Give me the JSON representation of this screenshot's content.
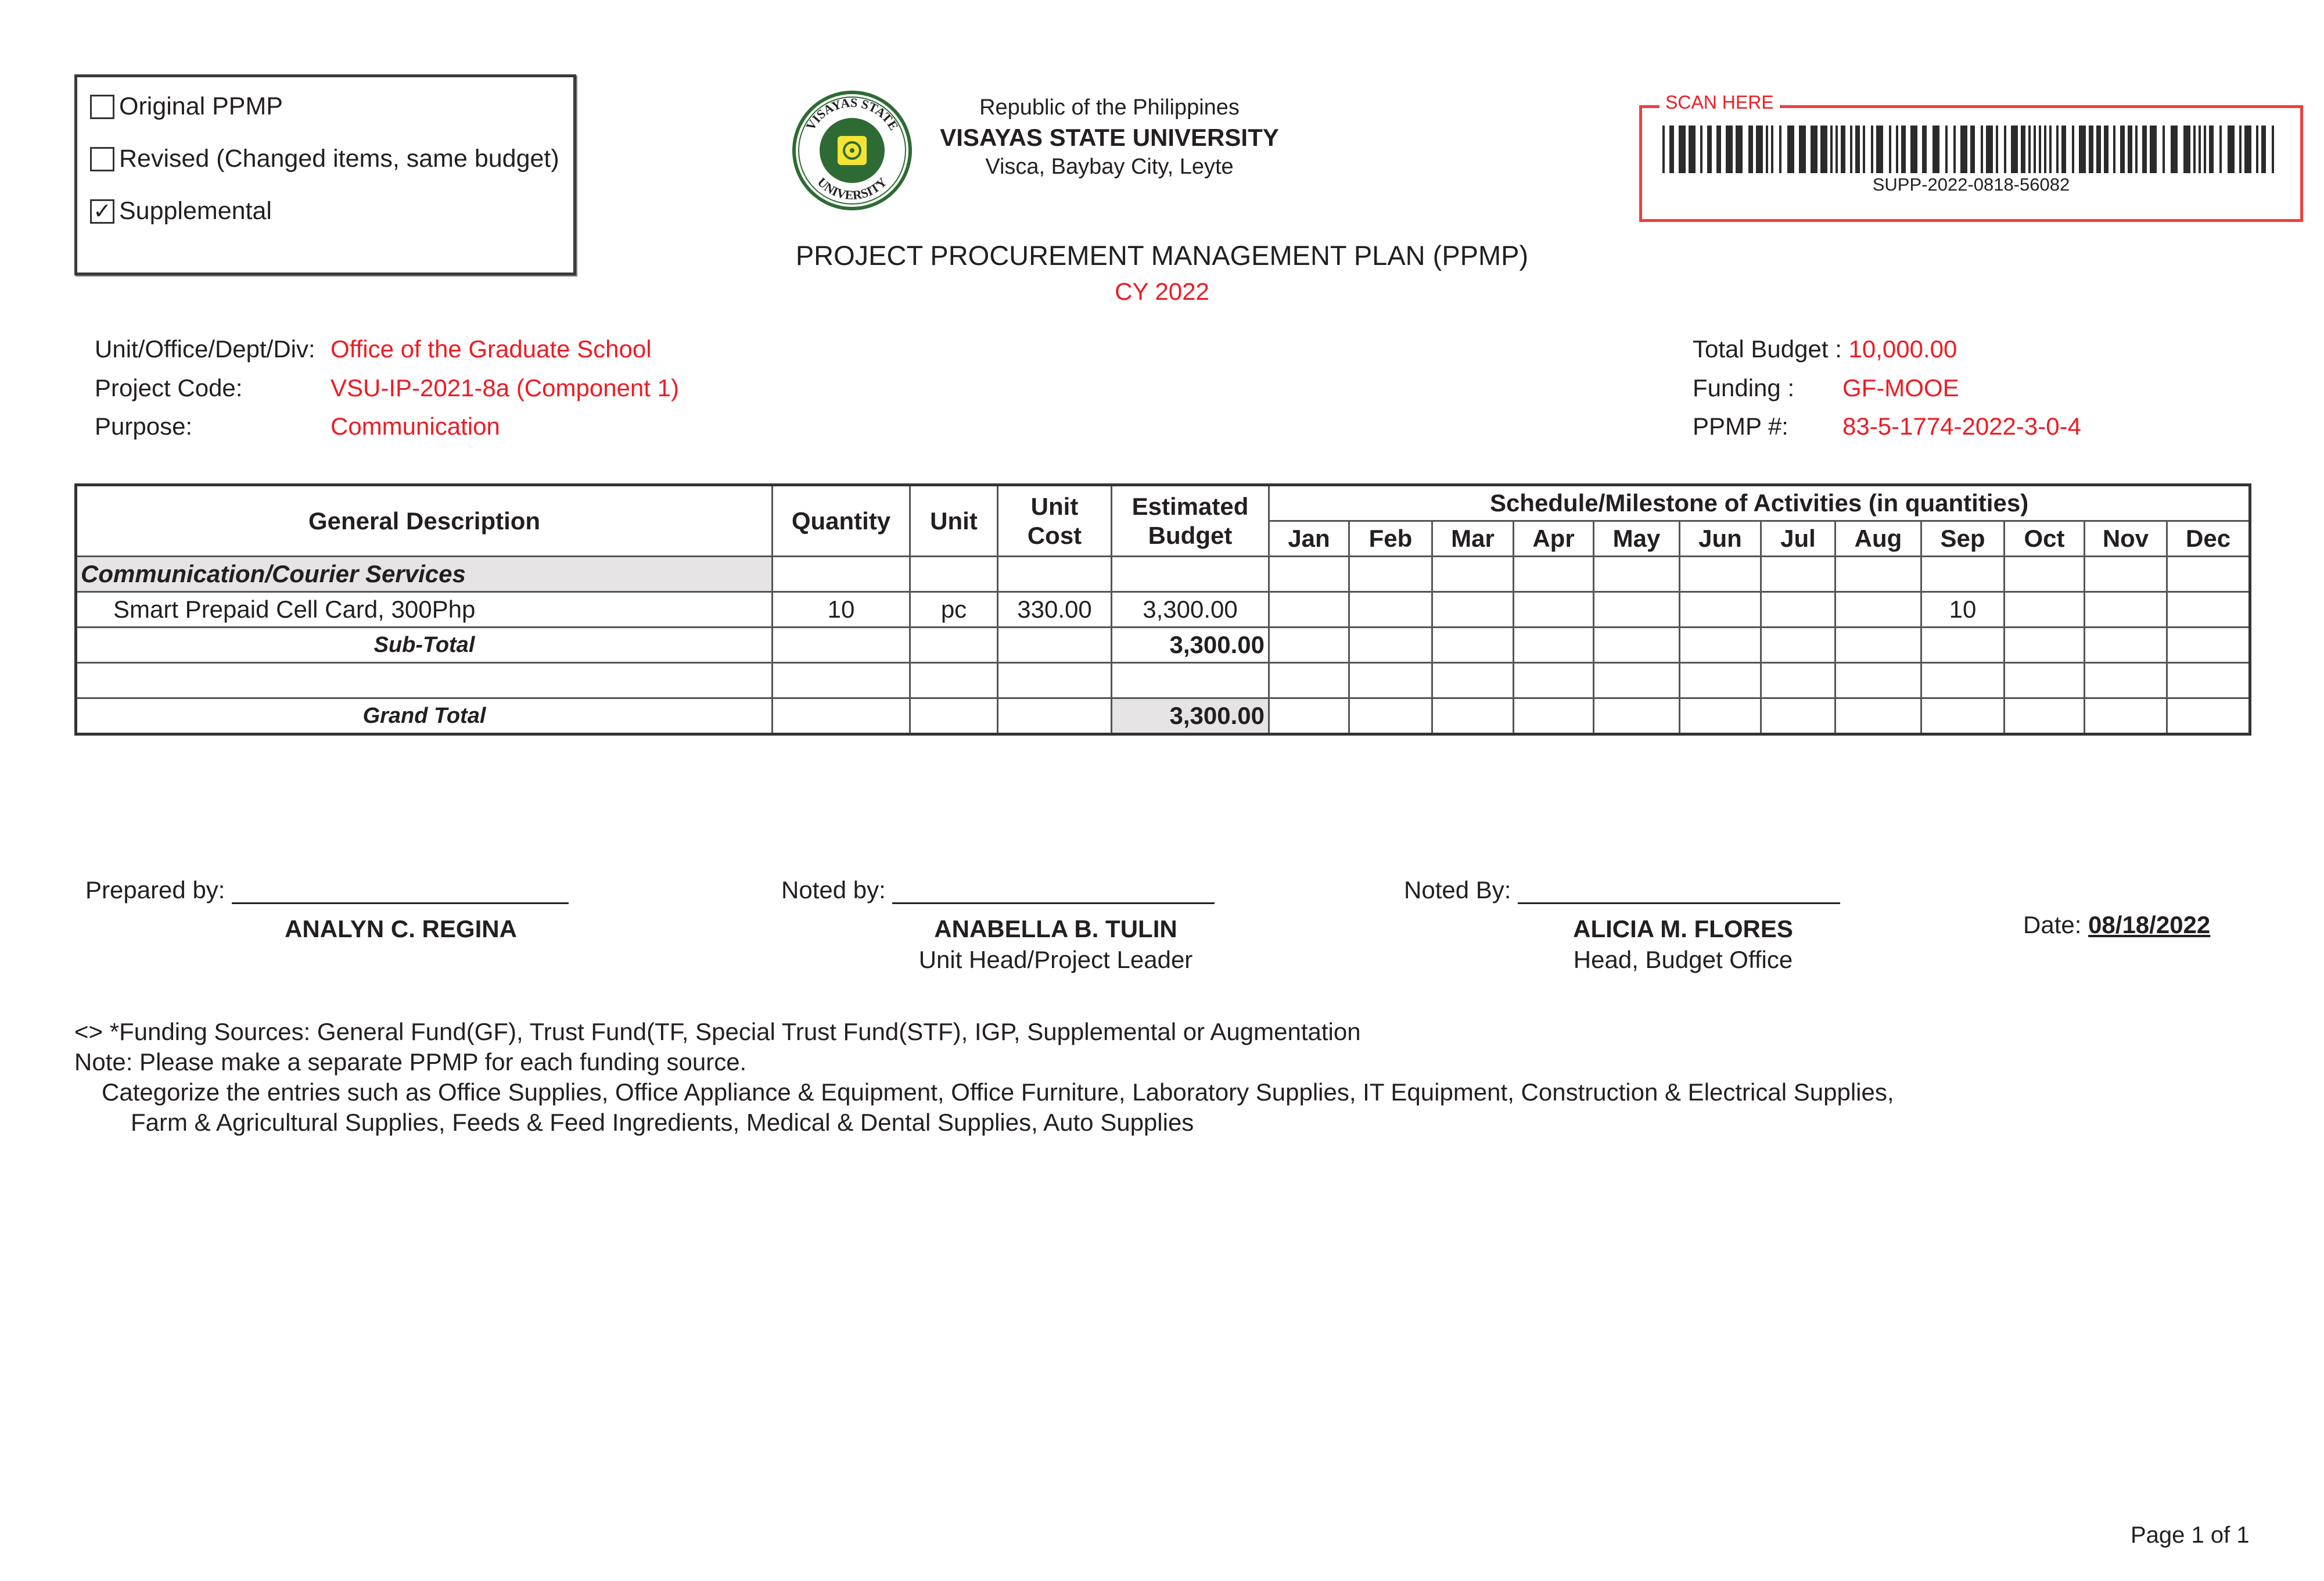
{
  "plan_type_options": [
    {
      "label": "Original PPMP",
      "checked": false
    },
    {
      "label": "Revised (Changed items, same budget)",
      "checked": false
    },
    {
      "label": "Supplemental",
      "checked": true
    }
  ],
  "header": {
    "republic": "Republic of the Philippines",
    "university": "VISAYAS STATE UNIVERSITY",
    "address": "Visca, Baybay City, Leyte",
    "logo_text": "VISAYAS STATE UNIVERSITY · TRUTH · RELEVANCE · EXCELLENCE · INTEGRITY · 1924",
    "logo_colors": {
      "green": "#2e6b34",
      "yellow": "#f4e533"
    }
  },
  "barcode": {
    "label": "SCAN HERE",
    "code": "SUPP-2022-0818-56082",
    "accent": "#ed1c24"
  },
  "title": "PROJECT PROCUREMENT MANAGEMENT PLAN (PPMP)",
  "year": "CY 2022",
  "info_left": [
    {
      "label": "Unit/Office/Dept/Div:",
      "value": "Office of the Graduate School"
    },
    {
      "label": "Project Code:",
      "value": "VSU-IP-2021-8a (Component 1)"
    },
    {
      "label": "Purpose:",
      "value": "Communication"
    }
  ],
  "info_right": [
    {
      "label": "Total Budget",
      "sep": ":",
      "value": "10,000.00"
    },
    {
      "label": "Funding :",
      "value": "GF-MOOE"
    },
    {
      "label": "PPMP #:",
      "value": "83-5-1774-2022-3-0-4"
    }
  ],
  "table": {
    "headers": {
      "description": "General Description",
      "quantity": "Quantity",
      "unit": "Unit",
      "unit_cost": "Unit Cost",
      "estimated_budget": "Estimated Budget",
      "schedule": "Schedule/Milestone of Activities (in quantities)",
      "months": [
        "Jan",
        "Feb",
        "Mar",
        "Apr",
        "May",
        "Jun",
        "Jul",
        "Aug",
        "Sep",
        "Oct",
        "Nov",
        "Dec"
      ]
    },
    "category": "Communication/Courier Services",
    "item": {
      "description": "Smart Prepaid Cell Card, 300Php",
      "quantity": "10",
      "unit": "pc",
      "unit_cost": "330.00",
      "estimated_budget": "3,300.00",
      "months": [
        "",
        "",
        "",
        "",
        "",
        "",
        "",
        "",
        "10",
        "",
        "",
        ""
      ]
    },
    "subtotal_label": "Sub-Total",
    "subtotal": "3,300.00",
    "grand_total_label": "Grand Total",
    "grand_total": "3,300.00"
  },
  "signatures": {
    "prepared_label": "Prepared by:",
    "prepared_name": "ANALYN C. REGINA",
    "noted1_label": "Noted by:",
    "noted1_name": "ANABELLA B. TULIN",
    "noted1_title": "Unit Head/Project Leader",
    "noted2_label": "Noted By:",
    "noted2_name": "ALICIA M. FLORES",
    "noted2_title": "Head, Budget Office",
    "date_label": "Date:",
    "date_value": "08/18/2022"
  },
  "notes": [
    "<> *Funding Sources: General Fund(GF), Trust Fund(TF, Special Trust Fund(STF), IGP, Supplemental or Augmentation",
    "Note: Please make a separate PPMP for each funding source.",
    "Categorize the entries such as Office Supplies, Office Appliance & Equipment, Office Furniture, Laboratory Supplies, IT Equipment, Construction & Electrical Supplies,",
    "Farm & Agricultural Supplies, Feeds & Feed Ingredients, Medical & Dental Supplies, Auto Supplies"
  ],
  "page_label": "Page 1 of 1"
}
